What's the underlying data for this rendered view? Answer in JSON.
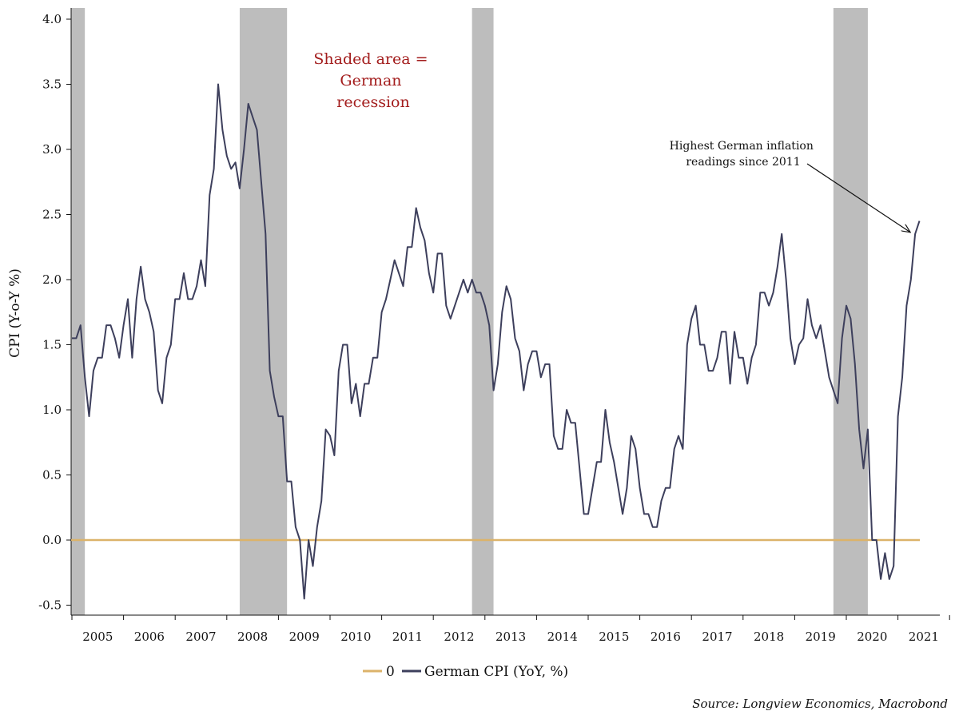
{
  "chart_data": {
    "type": "line",
    "title": "",
    "xlabel": "",
    "ylabel": "CPI (Y-o-Y %)",
    "ylim": [
      -0.5,
      4.0
    ],
    "yticks": [
      -0.5,
      0.0,
      0.5,
      1.0,
      1.5,
      2.0,
      2.5,
      3.0,
      3.5,
      4.0
    ],
    "ytick_labels": [
      "-0.5",
      "0.0",
      "0.5",
      "1.0",
      "1.5",
      "2.0",
      "2.5",
      "3.0",
      "3.5",
      "4.0"
    ],
    "xlim": [
      "2004-12",
      "2021-07"
    ],
    "xtick_labels": [
      "2005",
      "2006",
      "2007",
      "2008",
      "2009",
      "2010",
      "2011",
      "2012",
      "2013",
      "2014",
      "2015",
      "2016",
      "2017",
      "2018",
      "2019",
      "2020",
      "2021"
    ],
    "grid": false,
    "legend_placement": "bottom-center",
    "recessions": [
      {
        "start": "2004-12",
        "end": "2005-04"
      },
      {
        "start": "2008-04",
        "end": "2009-03"
      },
      {
        "start": "2012-10",
        "end": "2013-03"
      },
      {
        "start": "2019-10",
        "end": "2020-06"
      }
    ],
    "series": [
      {
        "name": "0",
        "color": "#dcb36a",
        "x": [
          "2004-12",
          "2021-07"
        ],
        "values": [
          0.0,
          0.0
        ]
      },
      {
        "name": "German CPI (YoY, %)",
        "color": "#3d3f5c",
        "x": [
          "2005-01",
          "2005-02",
          "2005-03",
          "2005-04",
          "2005-05",
          "2005-06",
          "2005-07",
          "2005-08",
          "2005-09",
          "2005-10",
          "2005-11",
          "2005-12",
          "2006-01",
          "2006-02",
          "2006-03",
          "2006-04",
          "2006-05",
          "2006-06",
          "2006-07",
          "2006-08",
          "2006-09",
          "2006-10",
          "2006-11",
          "2006-12",
          "2007-01",
          "2007-02",
          "2007-03",
          "2007-04",
          "2007-05",
          "2007-06",
          "2007-07",
          "2007-08",
          "2007-09",
          "2007-10",
          "2007-11",
          "2007-12",
          "2008-01",
          "2008-02",
          "2008-03",
          "2008-04",
          "2008-05",
          "2008-06",
          "2008-07",
          "2008-08",
          "2008-09",
          "2008-10",
          "2008-11",
          "2008-12",
          "2009-01",
          "2009-02",
          "2009-03",
          "2009-04",
          "2009-05",
          "2009-06",
          "2009-07",
          "2009-08",
          "2009-09",
          "2009-10",
          "2009-11",
          "2009-12",
          "2010-01",
          "2010-02",
          "2010-03",
          "2010-04",
          "2010-05",
          "2010-06",
          "2010-07",
          "2010-08",
          "2010-09",
          "2010-10",
          "2010-11",
          "2010-12",
          "2011-01",
          "2011-02",
          "2011-03",
          "2011-04",
          "2011-05",
          "2011-06",
          "2011-07",
          "2011-08",
          "2011-09",
          "2011-10",
          "2011-11",
          "2011-12",
          "2012-01",
          "2012-02",
          "2012-03",
          "2012-04",
          "2012-05",
          "2012-06",
          "2012-07",
          "2012-08",
          "2012-09",
          "2012-10",
          "2012-11",
          "2012-12",
          "2013-01",
          "2013-02",
          "2013-03",
          "2013-04",
          "2013-05",
          "2013-06",
          "2013-07",
          "2013-08",
          "2013-09",
          "2013-10",
          "2013-11",
          "2013-12",
          "2014-01",
          "2014-02",
          "2014-03",
          "2014-04",
          "2014-05",
          "2014-06",
          "2014-07",
          "2014-08",
          "2014-09",
          "2014-10",
          "2014-11",
          "2014-12",
          "2015-01",
          "2015-02",
          "2015-03",
          "2015-04",
          "2015-05",
          "2015-06",
          "2015-07",
          "2015-08",
          "2015-09",
          "2015-10",
          "2015-11",
          "2015-12",
          "2016-01",
          "2016-02",
          "2016-03",
          "2016-04",
          "2016-05",
          "2016-06",
          "2016-07",
          "2016-08",
          "2016-09",
          "2016-10",
          "2016-11",
          "2016-12",
          "2017-01",
          "2017-02",
          "2017-03",
          "2017-04",
          "2017-05",
          "2017-06",
          "2017-07",
          "2017-08",
          "2017-09",
          "2017-10",
          "2017-11",
          "2017-12",
          "2018-01",
          "2018-02",
          "2018-03",
          "2018-04",
          "2018-05",
          "2018-06",
          "2018-07",
          "2018-08",
          "2018-09",
          "2018-10",
          "2018-11",
          "2018-12",
          "2019-01",
          "2019-02",
          "2019-03",
          "2019-04",
          "2019-05",
          "2019-06",
          "2019-07",
          "2019-08",
          "2019-09",
          "2019-10",
          "2019-11",
          "2019-12",
          "2020-01",
          "2020-02",
          "2020-03",
          "2020-04",
          "2020-05",
          "2020-06",
          "2020-07",
          "2020-08",
          "2020-09",
          "2020-10",
          "2020-11",
          "2020-12",
          "2021-01",
          "2021-02",
          "2021-03",
          "2021-04",
          "2021-05",
          "2021-06"
        ],
        "values": [
          1.55,
          1.55,
          1.65,
          1.25,
          0.95,
          1.3,
          1.4,
          1.4,
          1.65,
          1.65,
          1.55,
          1.4,
          1.65,
          1.85,
          1.4,
          1.85,
          2.1,
          1.85,
          1.75,
          1.6,
          1.15,
          1.05,
          1.4,
          1.5,
          1.85,
          1.85,
          2.05,
          1.85,
          1.85,
          1.95,
          2.15,
          1.95,
          2.65,
          2.85,
          3.5,
          3.15,
          2.95,
          2.85,
          2.9,
          2.7,
          3.0,
          3.35,
          3.25,
          3.15,
          2.75,
          2.35,
          1.3,
          1.1,
          0.95,
          0.95,
          0.45,
          0.45,
          0.1,
          0.0,
          -0.45,
          0.0,
          -0.2,
          0.1,
          0.3,
          0.85,
          0.8,
          0.65,
          1.3,
          1.5,
          1.5,
          1.05,
          1.2,
          0.95,
          1.2,
          1.2,
          1.4,
          1.4,
          1.75,
          1.85,
          2.0,
          2.15,
          2.05,
          1.95,
          2.25,
          2.25,
          2.55,
          2.4,
          2.3,
          2.05,
          1.9,
          2.2,
          2.2,
          1.8,
          1.7,
          1.8,
          1.9,
          2.0,
          1.9,
          2.0,
          1.9,
          1.9,
          1.8,
          1.65,
          1.15,
          1.35,
          1.75,
          1.95,
          1.85,
          1.55,
          1.45,
          1.15,
          1.35,
          1.45,
          1.45,
          1.25,
          1.35,
          1.35,
          0.8,
          0.7,
          0.7,
          1.0,
          0.9,
          0.9,
          0.55,
          0.2,
          0.2,
          0.4,
          0.6,
          0.6,
          1.0,
          0.75,
          0.6,
          0.4,
          0.2,
          0.4,
          0.8,
          0.7,
          0.4,
          0.2,
          0.2,
          0.1,
          0.1,
          0.3,
          0.4,
          0.4,
          0.7,
          0.8,
          0.7,
          1.5,
          1.7,
          1.8,
          1.5,
          1.5,
          1.3,
          1.3,
          1.4,
          1.6,
          1.6,
          1.2,
          1.6,
          1.4,
          1.4,
          1.2,
          1.4,
          1.5,
          1.9,
          1.9,
          1.8,
          1.9,
          2.1,
          2.35,
          2.0,
          1.55,
          1.35,
          1.5,
          1.55,
          1.85,
          1.65,
          1.55,
          1.65,
          1.45,
          1.25,
          1.15,
          1.05,
          1.55,
          1.8,
          1.7,
          1.35,
          0.85,
          0.55,
          0.85,
          0.0,
          0.0,
          -0.3,
          -0.1,
          -0.3,
          -0.2,
          0.95,
          1.25,
          1.8,
          2.0,
          2.35,
          2.45
        ]
      }
    ],
    "annotations": [
      {
        "lines": [
          "Shaded area =",
          "German",
          "recession"
        ],
        "color": "#a31d1d"
      },
      {
        "lines": [
          "Highest German inflation",
          "readings since 2011"
        ],
        "color": "#111111",
        "arrow_to": {
          "x": "2021-05",
          "y": 2.4
        }
      }
    ],
    "source": "Source: Longview Economics, Macrobond"
  },
  "legend": [
    {
      "label": "0",
      "color": "#dcb36a"
    },
    {
      "label": "German CPI (YoY, %)",
      "color": "#3d3f5c"
    }
  ]
}
